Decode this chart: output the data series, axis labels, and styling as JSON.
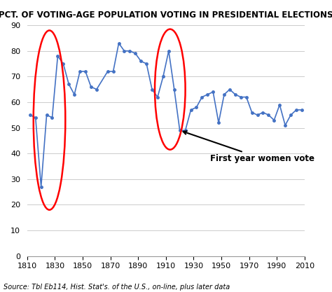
{
  "title": "PCT. OF VOTING-AGE POPULATION VOTING IN PRESIDENTIAL ELECTIONS",
  "source": "Source: Tbl Eb114, Hist. Stat's. of the U.S., on-line, plus later data",
  "annotation": "First year women vote",
  "years": [
    1812,
    1816,
    1820,
    1824,
    1828,
    1832,
    1836,
    1840,
    1844,
    1848,
    1852,
    1856,
    1860,
    1868,
    1872,
    1876,
    1880,
    1884,
    1888,
    1892,
    1896,
    1900,
    1904,
    1908,
    1912,
    1916,
    1920,
    1924,
    1928,
    1932,
    1936,
    1940,
    1944,
    1948,
    1952,
    1956,
    1960,
    1964,
    1968,
    1972,
    1976,
    1980,
    1984,
    1988,
    1992,
    1996,
    2000,
    2004,
    2008
  ],
  "values": [
    55,
    54,
    27,
    55,
    54,
    78,
    75,
    67,
    63,
    72,
    72,
    66,
    65,
    72,
    72,
    83,
    80,
    80,
    79,
    76,
    75,
    65,
    62,
    70,
    80,
    65,
    49,
    49,
    57,
    58,
    62,
    63,
    64,
    52,
    63,
    65,
    63,
    62,
    62,
    56,
    55,
    56,
    55,
    53,
    59,
    51,
    55,
    57,
    57
  ],
  "line_color": "#4472C4",
  "marker_color": "#4472C4",
  "xlim": [
    1810,
    2010
  ],
  "ylim": [
    0,
    90
  ],
  "xticks": [
    1810,
    1830,
    1850,
    1870,
    1890,
    1910,
    1930,
    1950,
    1970,
    1990,
    2010
  ],
  "yticks": [
    0,
    10,
    20,
    30,
    40,
    50,
    60,
    70,
    80,
    90
  ],
  "background_color": "#ffffff",
  "title_fontsize": 8.5,
  "axis_fontsize": 8,
  "source_fontsize": 7
}
